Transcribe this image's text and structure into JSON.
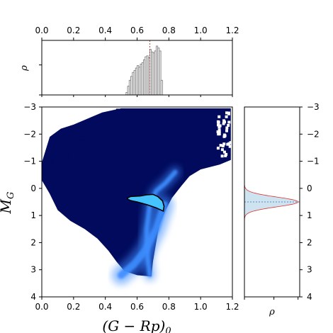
{
  "chart_data": [
    {
      "id": "cmd",
      "type": "heatmap",
      "title": "",
      "xlabel": "(G − Rp)",
      "xlabel_sub": "0",
      "ylabel": "M",
      "ylabel_sub": "G",
      "xlim": [
        0.0,
        1.2
      ],
      "ylim": [
        4,
        -3
      ],
      "y_inverted": true,
      "xticks": [
        "0.0",
        "0.2",
        "0.4",
        "0.6",
        "0.8",
        "1.0",
        "1.2"
      ],
      "yticks": [
        "−3",
        "−2",
        "−1",
        "0",
        "1",
        "2",
        "3",
        "4"
      ],
      "colors": {
        "background": "#010a5c",
        "ridge": "#3e8dff",
        "core": "#6cc8ff",
        "contour_fill": "#45c4ff",
        "contour_line": "#000000"
      },
      "density_ridges": [
        {
          "name": "main-sequence",
          "x": [
            0.77,
            0.72,
            0.65,
            0.58,
            0.52,
            0.5
          ],
          "y": [
            0.6,
            1.5,
            2.3,
            2.8,
            3.1,
            3.2
          ],
          "width": 0.05
        },
        {
          "name": "giant-branch",
          "x": [
            0.84,
            0.78,
            0.72,
            0.68,
            0.66,
            0.665,
            0.68
          ],
          "y": [
            -0.6,
            -0.2,
            0.1,
            0.6,
            1.5,
            2.5,
            3.2
          ],
          "width": 0.03
        }
      ],
      "contour": {
        "x": [
          0.54,
          0.56,
          0.62,
          0.66,
          0.7,
          0.73,
          0.76,
          0.77,
          0.765,
          0.72,
          0.66,
          0.6,
          0.56,
          0.54
        ],
        "y": [
          0.35,
          0.3,
          0.28,
          0.24,
          0.22,
          0.3,
          0.46,
          0.66,
          0.84,
          0.72,
          0.6,
          0.5,
          0.45,
          0.4
        ]
      }
    },
    {
      "id": "top-hist",
      "type": "bar",
      "ylabel": "ρ",
      "xlim": [
        0.0,
        1.2
      ],
      "xticks": [
        "0.0",
        "0.2",
        "0.4",
        "0.6",
        "0.8",
        "1.0",
        "1.2"
      ],
      "bin_width": 0.01,
      "bins_start": [
        0.53,
        0.54,
        0.55,
        0.56,
        0.57,
        0.58,
        0.59,
        0.6,
        0.61,
        0.62,
        0.63,
        0.64,
        0.65,
        0.66,
        0.67,
        0.68,
        0.69,
        0.7,
        0.71,
        0.72,
        0.73,
        0.74,
        0.75,
        0.76
      ],
      "values": [
        0.05,
        0.18,
        0.3,
        0.38,
        0.46,
        0.5,
        0.55,
        0.6,
        0.57,
        0.63,
        0.66,
        0.72,
        0.78,
        0.8,
        0.76,
        0.93,
        0.88,
        0.86,
        0.9,
        1.0,
        0.96,
        0.9,
        0.3,
        0.0
      ],
      "median": 0.68,
      "colors": {
        "step": "#808080",
        "median": "#b22222"
      }
    },
    {
      "id": "right-hist",
      "type": "area",
      "xlabel": "ρ",
      "ylim": [
        4,
        -3
      ],
      "yticks": [
        "−3",
        "−2",
        "−1",
        "0",
        "1",
        "2",
        "3",
        "4"
      ],
      "distribution": {
        "mean": 0.5,
        "sigma": 0.18
      },
      "median": 0.5,
      "colors": {
        "fill": "#cde3ef",
        "line": "#e03030",
        "median": "#3a6ea5"
      }
    }
  ]
}
